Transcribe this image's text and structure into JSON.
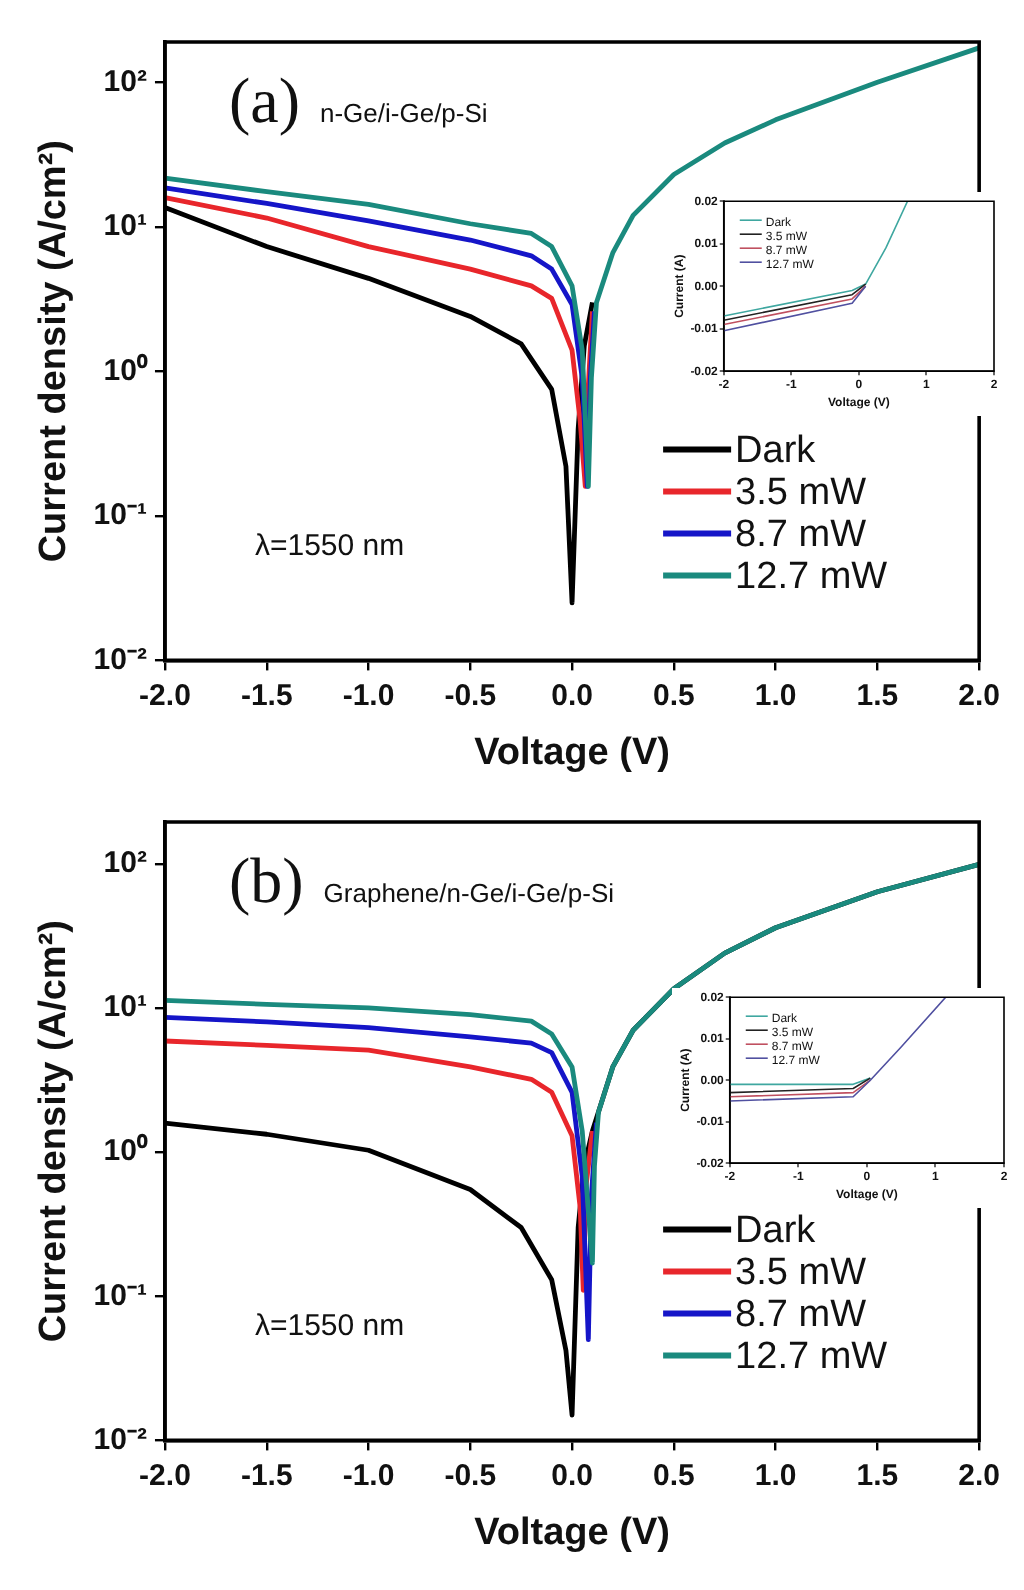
{
  "chart_data": [
    {
      "type": "line",
      "xlabel": "Voltage (V)",
      "ylabel": "Current density (A/cm²)",
      "annotations": [
        "(a)",
        "n-Ge/i-Ge/p-Si",
        "λ=1550 nm"
      ],
      "log": "y",
      "xlim": [
        -2,
        2
      ],
      "ylim": [
        0.01,
        190
      ],
      "xticks": [
        {
          "value": -2,
          "label": "-2.0"
        },
        -1.5,
        {
          "value": -1,
          "label": "-1.0"
        },
        -0.5,
        {
          "value": 0,
          "label": "0.0"
        },
        0.5,
        {
          "value": 1,
          "label": "1.0"
        },
        1.5,
        {
          "value": 2,
          "label": "2.0"
        }
      ],
      "yticks": [
        {
          "value": 0.01,
          "label": "10⁻²"
        },
        {
          "value": 0.1,
          "label": "10⁻¹"
        },
        {
          "value": 1,
          "label": "10⁰"
        },
        {
          "value": 10,
          "label": "10¹"
        },
        {
          "value": 100,
          "label": "10²"
        }
      ],
      "legend": "bottom right",
      "marker": "none",
      "line_style": "solid",
      "series": [
        {
          "name": "Dark",
          "color": "#000000",
          "x": [
            -2,
            -1.5,
            -1,
            -0.5,
            -0.25,
            -0.1,
            -0.03,
            0,
            0.03,
            0.06,
            0.1
          ],
          "values": [
            13.6,
            7.3,
            4.4,
            2.4,
            1.55,
            0.75,
            0.22,
            0.025,
            0.4,
            1.5,
            3
          ]
        },
        {
          "name": "3.5 mW",
          "color": "#e8262b",
          "x": [
            -2,
            -1.5,
            -1,
            -0.5,
            -0.2,
            -0.1,
            0,
            0.04,
            0.065,
            0.08,
            0.1
          ],
          "values": [
            15.9,
            11.5,
            7.3,
            5.1,
            3.9,
            3.2,
            1.4,
            0.45,
            0.16,
            0.8,
            2.6
          ]
        },
        {
          "name": "8.7 mW",
          "color": "#1515c8",
          "x": [
            -2,
            -1.5,
            -1,
            -0.5,
            -0.2,
            -0.1,
            0,
            0.05,
            0.075,
            0.09,
            0.11
          ],
          "values": [
            18.6,
            14.5,
            11,
            8.1,
            6.3,
            5.1,
            2.9,
            0.9,
            0.16,
            0.9,
            2.6
          ]
        },
        {
          "name": "12.7 mW",
          "color": "#1a8a7e",
          "x": [
            -2,
            -1.5,
            -1,
            -0.5,
            -0.2,
            -0.1,
            0,
            0.05,
            0.08,
            0.095,
            0.12,
            0.2,
            0.3,
            0.5,
            0.75,
            1,
            1.5,
            2
          ],
          "values": [
            21.7,
            17.5,
            14.3,
            10.5,
            9,
            7.3,
            3.9,
            1.4,
            0.16,
            0.9,
            3,
            6.6,
            12,
            23,
            38,
            55,
            100,
            173
          ]
        }
      ]
    },
    {
      "type": "line",
      "xlabel": "Voltage (V)",
      "ylabel": "Current (A)",
      "xlim": [
        -2,
        2
      ],
      "ylim": [
        -0.02,
        0.02
      ],
      "xticks": [
        -2,
        -1,
        0,
        1,
        2
      ],
      "yticks": [
        -0.02,
        -0.01,
        {
          "value": 0,
          "label": "0.00"
        },
        0.01,
        0.02
      ],
      "legend": "top left",
      "marker": "none",
      "line_style": "solid",
      "series": [
        {
          "name": "Dark",
          "color": "#3fa7a0",
          "x": [
            -2,
            -0.1,
            0.1,
            0.4,
            0.72
          ],
          "values": [
            -0.007,
            -0.001,
            0.0005,
            0.009,
            0.02
          ]
        },
        {
          "name": "3.5 mW",
          "color": "#222222",
          "x": [
            -2,
            -0.1,
            0.1
          ],
          "values": [
            -0.008,
            -0.002,
            0.0005
          ]
        },
        {
          "name": "8.7 mW",
          "color": "#c05060",
          "x": [
            -2,
            -0.1,
            0.1
          ],
          "values": [
            -0.009,
            -0.003,
            0
          ]
        },
        {
          "name": "12.7 mW",
          "color": "#5050a0",
          "x": [
            -2,
            -0.1,
            0.1
          ],
          "values": [
            -0.0105,
            -0.004,
            0
          ]
        }
      ]
    },
    {
      "type": "line",
      "xlabel": "Voltage (V)",
      "ylabel": "Current density (A/cm²)",
      "annotations": [
        "(b)",
        "Graphene/n-Ge/i-Ge/p-Si",
        "λ=1550 nm"
      ],
      "log": "y",
      "xlim": [
        -2,
        2
      ],
      "ylim": [
        0.01,
        195
      ],
      "xticks": [
        {
          "value": -2,
          "label": "-2.0"
        },
        -1.5,
        {
          "value": -1,
          "label": "-1.0"
        },
        -0.5,
        {
          "value": 0,
          "label": "0.0"
        },
        0.5,
        {
          "value": 1,
          "label": "1.0"
        },
        1.5,
        {
          "value": 2,
          "label": "2.0"
        }
      ],
      "yticks": [
        {
          "value": 0.01,
          "label": "10⁻²"
        },
        {
          "value": 0.1,
          "label": "10⁻¹"
        },
        {
          "value": 1,
          "label": "10⁰"
        },
        {
          "value": 10,
          "label": "10¹"
        },
        {
          "value": 100,
          "label": "10²"
        }
      ],
      "legend": "bottom right",
      "marker": "none",
      "line_style": "solid",
      "series": [
        {
          "name": "Dark",
          "color": "#000000",
          "x": [
            -2,
            -1.5,
            -1,
            -0.5,
            -0.25,
            -0.1,
            -0.03,
            0,
            0.03,
            0.06,
            0.1,
            0.2,
            0.3,
            0.5,
            0.75,
            1,
            1.5,
            2
          ],
          "values": [
            1.59,
            1.33,
            1.03,
            0.55,
            0.3,
            0.13,
            0.042,
            0.015,
            0.3,
            0.8,
            1.4,
            3.9,
            7,
            13.6,
            24,
            36,
            64,
            99
          ]
        },
        {
          "name": "3.5 mW",
          "color": "#e8262b",
          "x": [
            -2,
            -1.5,
            -1,
            -0.5,
            -0.2,
            -0.1,
            0,
            0.04,
            0.055,
            0.07,
            0.1
          ],
          "values": [
            5.9,
            5.5,
            5.1,
            3.9,
            3.2,
            2.6,
            1.3,
            0.41,
            0.11,
            0.6,
            1.4
          ]
        },
        {
          "name": "8.7 mW",
          "color": "#1515c8",
          "x": [
            -2,
            -1.5,
            -1,
            -0.5,
            -0.2,
            -0.1,
            0,
            0.05,
            0.08,
            0.095,
            0.12
          ],
          "values": [
            8.6,
            8,
            7.3,
            6.3,
            5.7,
            4.9,
            2.6,
            0.68,
            0.05,
            0.5,
            1.6
          ]
        },
        {
          "name": "12.7 mW",
          "color": "#1a8a7e",
          "x": [
            -2,
            -1.5,
            -1,
            -0.5,
            -0.2,
            -0.1,
            0,
            0.05,
            0.1,
            0.11,
            0.13,
            0.2,
            0.3,
            0.5,
            0.75,
            1,
            1.5,
            2
          ],
          "values": [
            11.3,
            10.6,
            10,
            9,
            8.1,
            6.6,
            3.9,
            1.4,
            0.17,
            0.8,
            1.9,
            3.9,
            7,
            13.6,
            24,
            36,
            64,
            99
          ]
        }
      ]
    },
    {
      "type": "line",
      "xlabel": "Voltage (V)",
      "ylabel": "Current (A)",
      "xlim": [
        -2,
        2
      ],
      "ylim": [
        -0.02,
        0.02
      ],
      "xticks": [
        -2,
        -1,
        0,
        1,
        2
      ],
      "yticks": [
        -0.02,
        -0.01,
        {
          "value": 0,
          "label": "0.00"
        },
        0.01,
        0.02
      ],
      "legend": "top left",
      "marker": "none",
      "line_style": "solid",
      "series": [
        {
          "name": "Dark",
          "color": "#3fa7a0",
          "x": [
            -2,
            -0.2,
            0.05
          ],
          "values": [
            -0.001,
            -0.001,
            0.0005
          ]
        },
        {
          "name": "3.5 mW",
          "color": "#222222",
          "x": [
            -2,
            -0.2,
            0.05
          ],
          "values": [
            -0.003,
            -0.002,
            0.0005
          ]
        },
        {
          "name": "8.7 mW",
          "color": "#c05060",
          "x": [
            -2,
            -0.2,
            0.05
          ],
          "values": [
            -0.004,
            -0.003,
            0
          ]
        },
        {
          "name": "12.7 mW",
          "color": "#5050a0",
          "x": [
            -2,
            -0.2,
            0.05,
            0.5,
            1.15
          ],
          "values": [
            -0.005,
            -0.004,
            0,
            0.008,
            0.02
          ]
        }
      ]
    }
  ]
}
